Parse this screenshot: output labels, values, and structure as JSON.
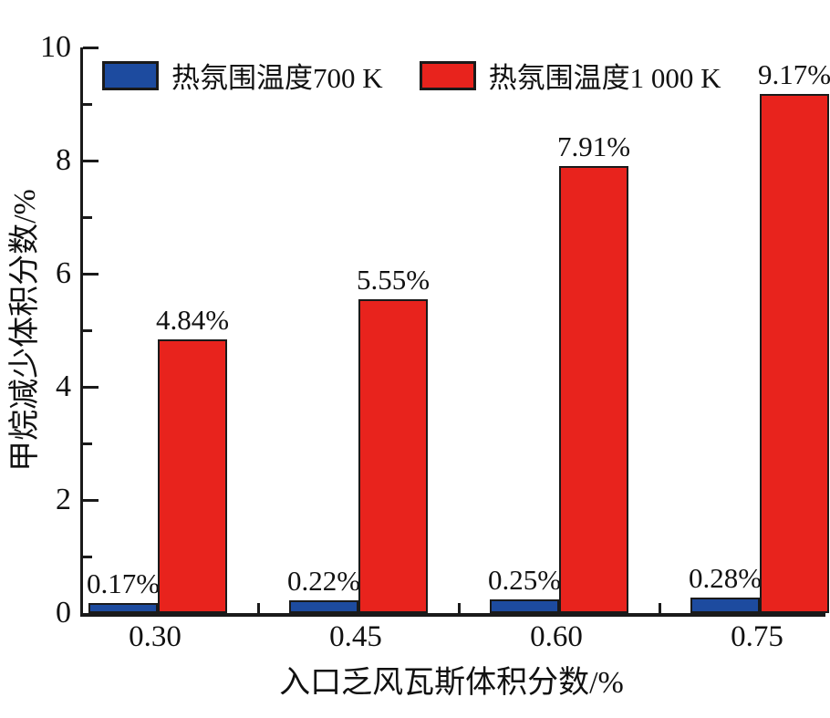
{
  "chart_data": {
    "type": "bar",
    "title": "",
    "categories": [
      "0.30",
      "0.45",
      "0.60",
      "0.75"
    ],
    "series": [
      {
        "name": "热氛围温度700 K",
        "color": "#1d4b9f",
        "values": [
          0.17,
          0.22,
          0.25,
          0.28
        ],
        "labels": [
          "0.17%",
          "0.22%",
          "0.25%",
          "0.28%"
        ]
      },
      {
        "name": "热氛围温度1 000 K",
        "color": "#e8231d",
        "values": [
          4.84,
          5.55,
          7.91,
          9.17
        ],
        "labels": [
          "4.84%",
          "5.55%",
          "7.91%",
          "9.17%"
        ]
      }
    ],
    "xlabel": "入口乏风瓦斯体积分数/%",
    "ylabel": "甲烷减少体积分数/%",
    "ylim": [
      0,
      10
    ],
    "yticks_major": [
      0,
      2,
      4,
      6,
      8,
      10
    ],
    "yticks_minor": [
      1,
      3,
      5,
      7,
      9
    ],
    "grid": false,
    "legend_position": "top-left-inside",
    "bar_edge_color": "#1a1a1a",
    "background": "#ffffff"
  }
}
